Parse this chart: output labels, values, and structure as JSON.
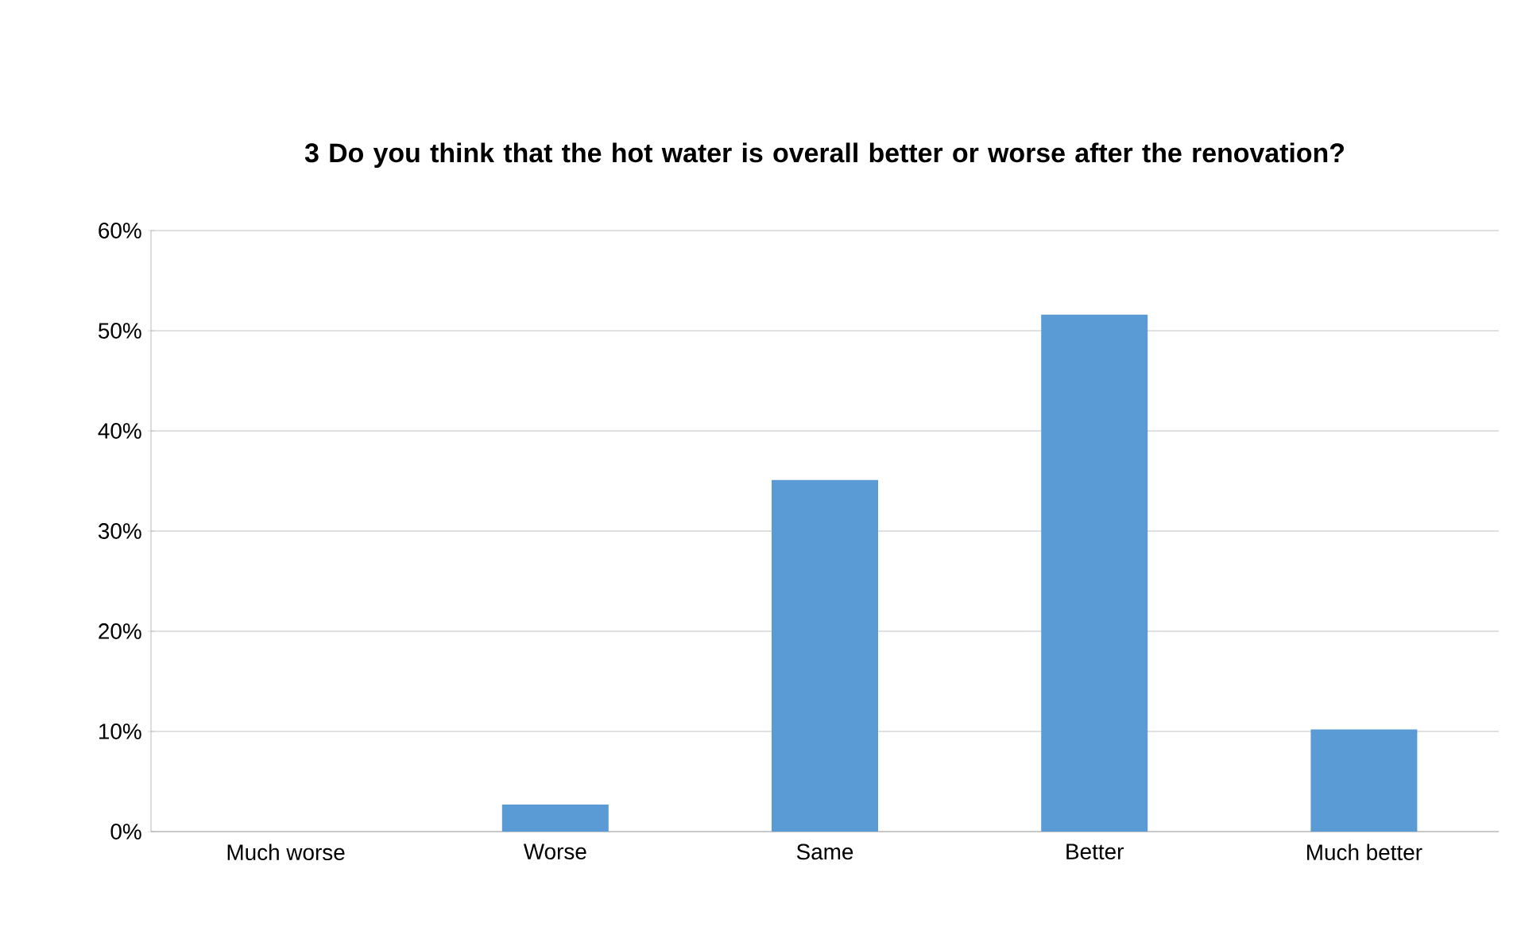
{
  "chart_data": {
    "type": "bar",
    "title": "3 Do you think that the hot water is overall better or worse after the renovation?",
    "categories": [
      "Much worse",
      "Worse",
      "Same",
      "Better",
      "Much better"
    ],
    "values": [
      0,
      2.7,
      35.1,
      51.6,
      10.2
    ],
    "color": "#5b9bd5",
    "ylim": [
      0,
      60
    ],
    "yticks": [
      {
        "value": 0,
        "label": "0%"
      },
      {
        "value": 10,
        "label": "10%"
      },
      {
        "value": 20,
        "label": "20%"
      },
      {
        "value": 30,
        "label": "30%"
      },
      {
        "value": 40,
        "label": "40%"
      },
      {
        "value": 50,
        "label": "50%"
      },
      {
        "value": 60,
        "label": "60%"
      }
    ],
    "grid": "y"
  }
}
